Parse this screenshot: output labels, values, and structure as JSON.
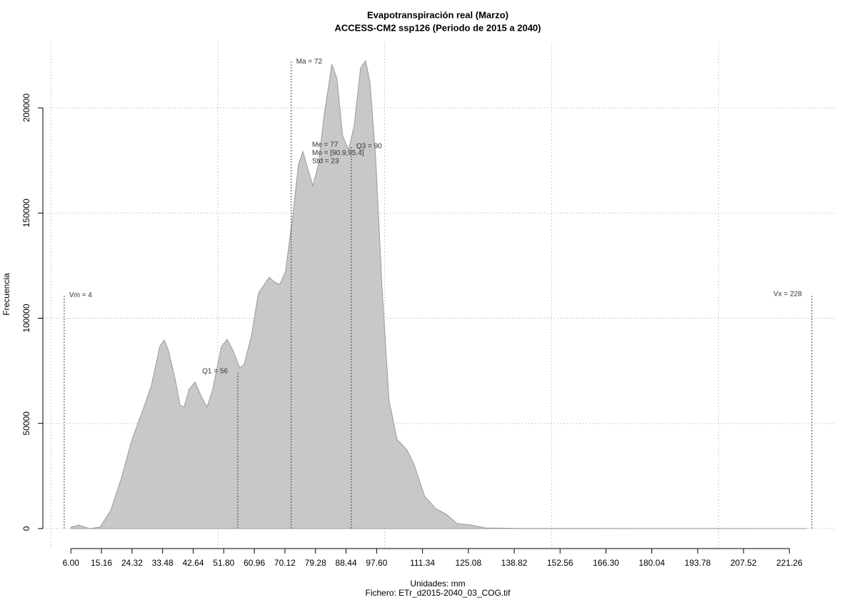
{
  "chart_data": {
    "type": "area",
    "title": "Evapotranspiración real (Marzo)",
    "subtitle": "ACCESS-CM2 ssp126 (Periodo de 2015 a 2040)",
    "xlabel": "Unidades: mm",
    "caption": "Fichero: ETr_d2015-2040_03_COG.tif",
    "ylabel": "Frecuencia",
    "color": "#c8c8c8",
    "line_color": "#9a9a9a",
    "grid": true,
    "xgrid": [
      0,
      50,
      100,
      150,
      200
    ],
    "xlim": [
      -2.4,
      235.1
    ],
    "ylim": [
      -9500,
      230900
    ],
    "xticks": [
      {
        "value": 6,
        "label": "6.00"
      },
      15.16,
      24.32,
      33.48,
      42.64,
      {
        "value": 51.8,
        "label": "51.80"
      },
      60.96,
      70.12,
      79.28,
      88.44,
      {
        "value": 97.6,
        "label": "97.60"
      },
      111.34,
      125.08,
      138.82,
      152.56,
      {
        "value": 166.3,
        "label": "166.30"
      },
      180.04,
      193.78,
      207.52,
      221.26
    ],
    "yticks": [
      0,
      50000,
      100000,
      150000,
      200000
    ],
    "x": [
      6,
      8.3,
      11.5,
      14.7,
      17.9,
      21.1,
      24.3,
      27.5,
      30.1,
      32.7,
      34,
      35.2,
      37.2,
      38.7,
      39.9,
      41.4,
      43.2,
      45.1,
      46.8,
      48.5,
      51.1,
      52.8,
      54.5,
      56.6,
      57.9,
      60.1,
      62.2,
      65.4,
      67.1,
      68.6,
      70.3,
      72.5,
      74.2,
      75.5,
      77.2,
      78.5,
      80.2,
      81.9,
      84.2,
      85.7,
      87.4,
      89.2,
      90.9,
      92.8,
      94.3,
      95.6,
      97.3,
      99.2,
      101.3,
      103.7,
      106.7,
      108.8,
      112,
      115.3,
      118.5,
      121.7,
      126,
      130.2,
      140.9,
      226.5
    ],
    "values": [
      700,
      1700,
      0,
      700,
      8500,
      23800,
      42400,
      56000,
      67900,
      86900,
      89600,
      84900,
      71300,
      58700,
      57700,
      66200,
      69600,
      62800,
      57700,
      66200,
      86600,
      90000,
      84900,
      76400,
      78100,
      91700,
      112000,
      119500,
      117100,
      116100,
      122200,
      149400,
      173200,
      179300,
      169800,
      163000,
      173200,
      196900,
      220700,
      213900,
      186800,
      180000,
      191900,
      219000,
      222400,
      212200,
      176600,
      115400,
      61100,
      42400,
      37400,
      30600,
      15300,
      9500,
      6800,
      2400,
      1700,
      300,
      100,
      0
    ],
    "annotations": [
      {
        "label": "Vm = 4",
        "x": 4,
        "y": 111000
      },
      {
        "label": "Q1 = 56",
        "x": 56,
        "y": 74700
      },
      {
        "label": "Ma = 72",
        "x": 72,
        "y": 222000
      },
      {
        "label": "Q3 = 90",
        "x": 90,
        "y": 181700
      },
      {
        "label": "Vx = 228",
        "x": 228,
        "y": 111400
      }
    ],
    "stats": [
      "Me = 77",
      "Mo = [90.9,95.4]",
      "Std = 23"
    ]
  }
}
